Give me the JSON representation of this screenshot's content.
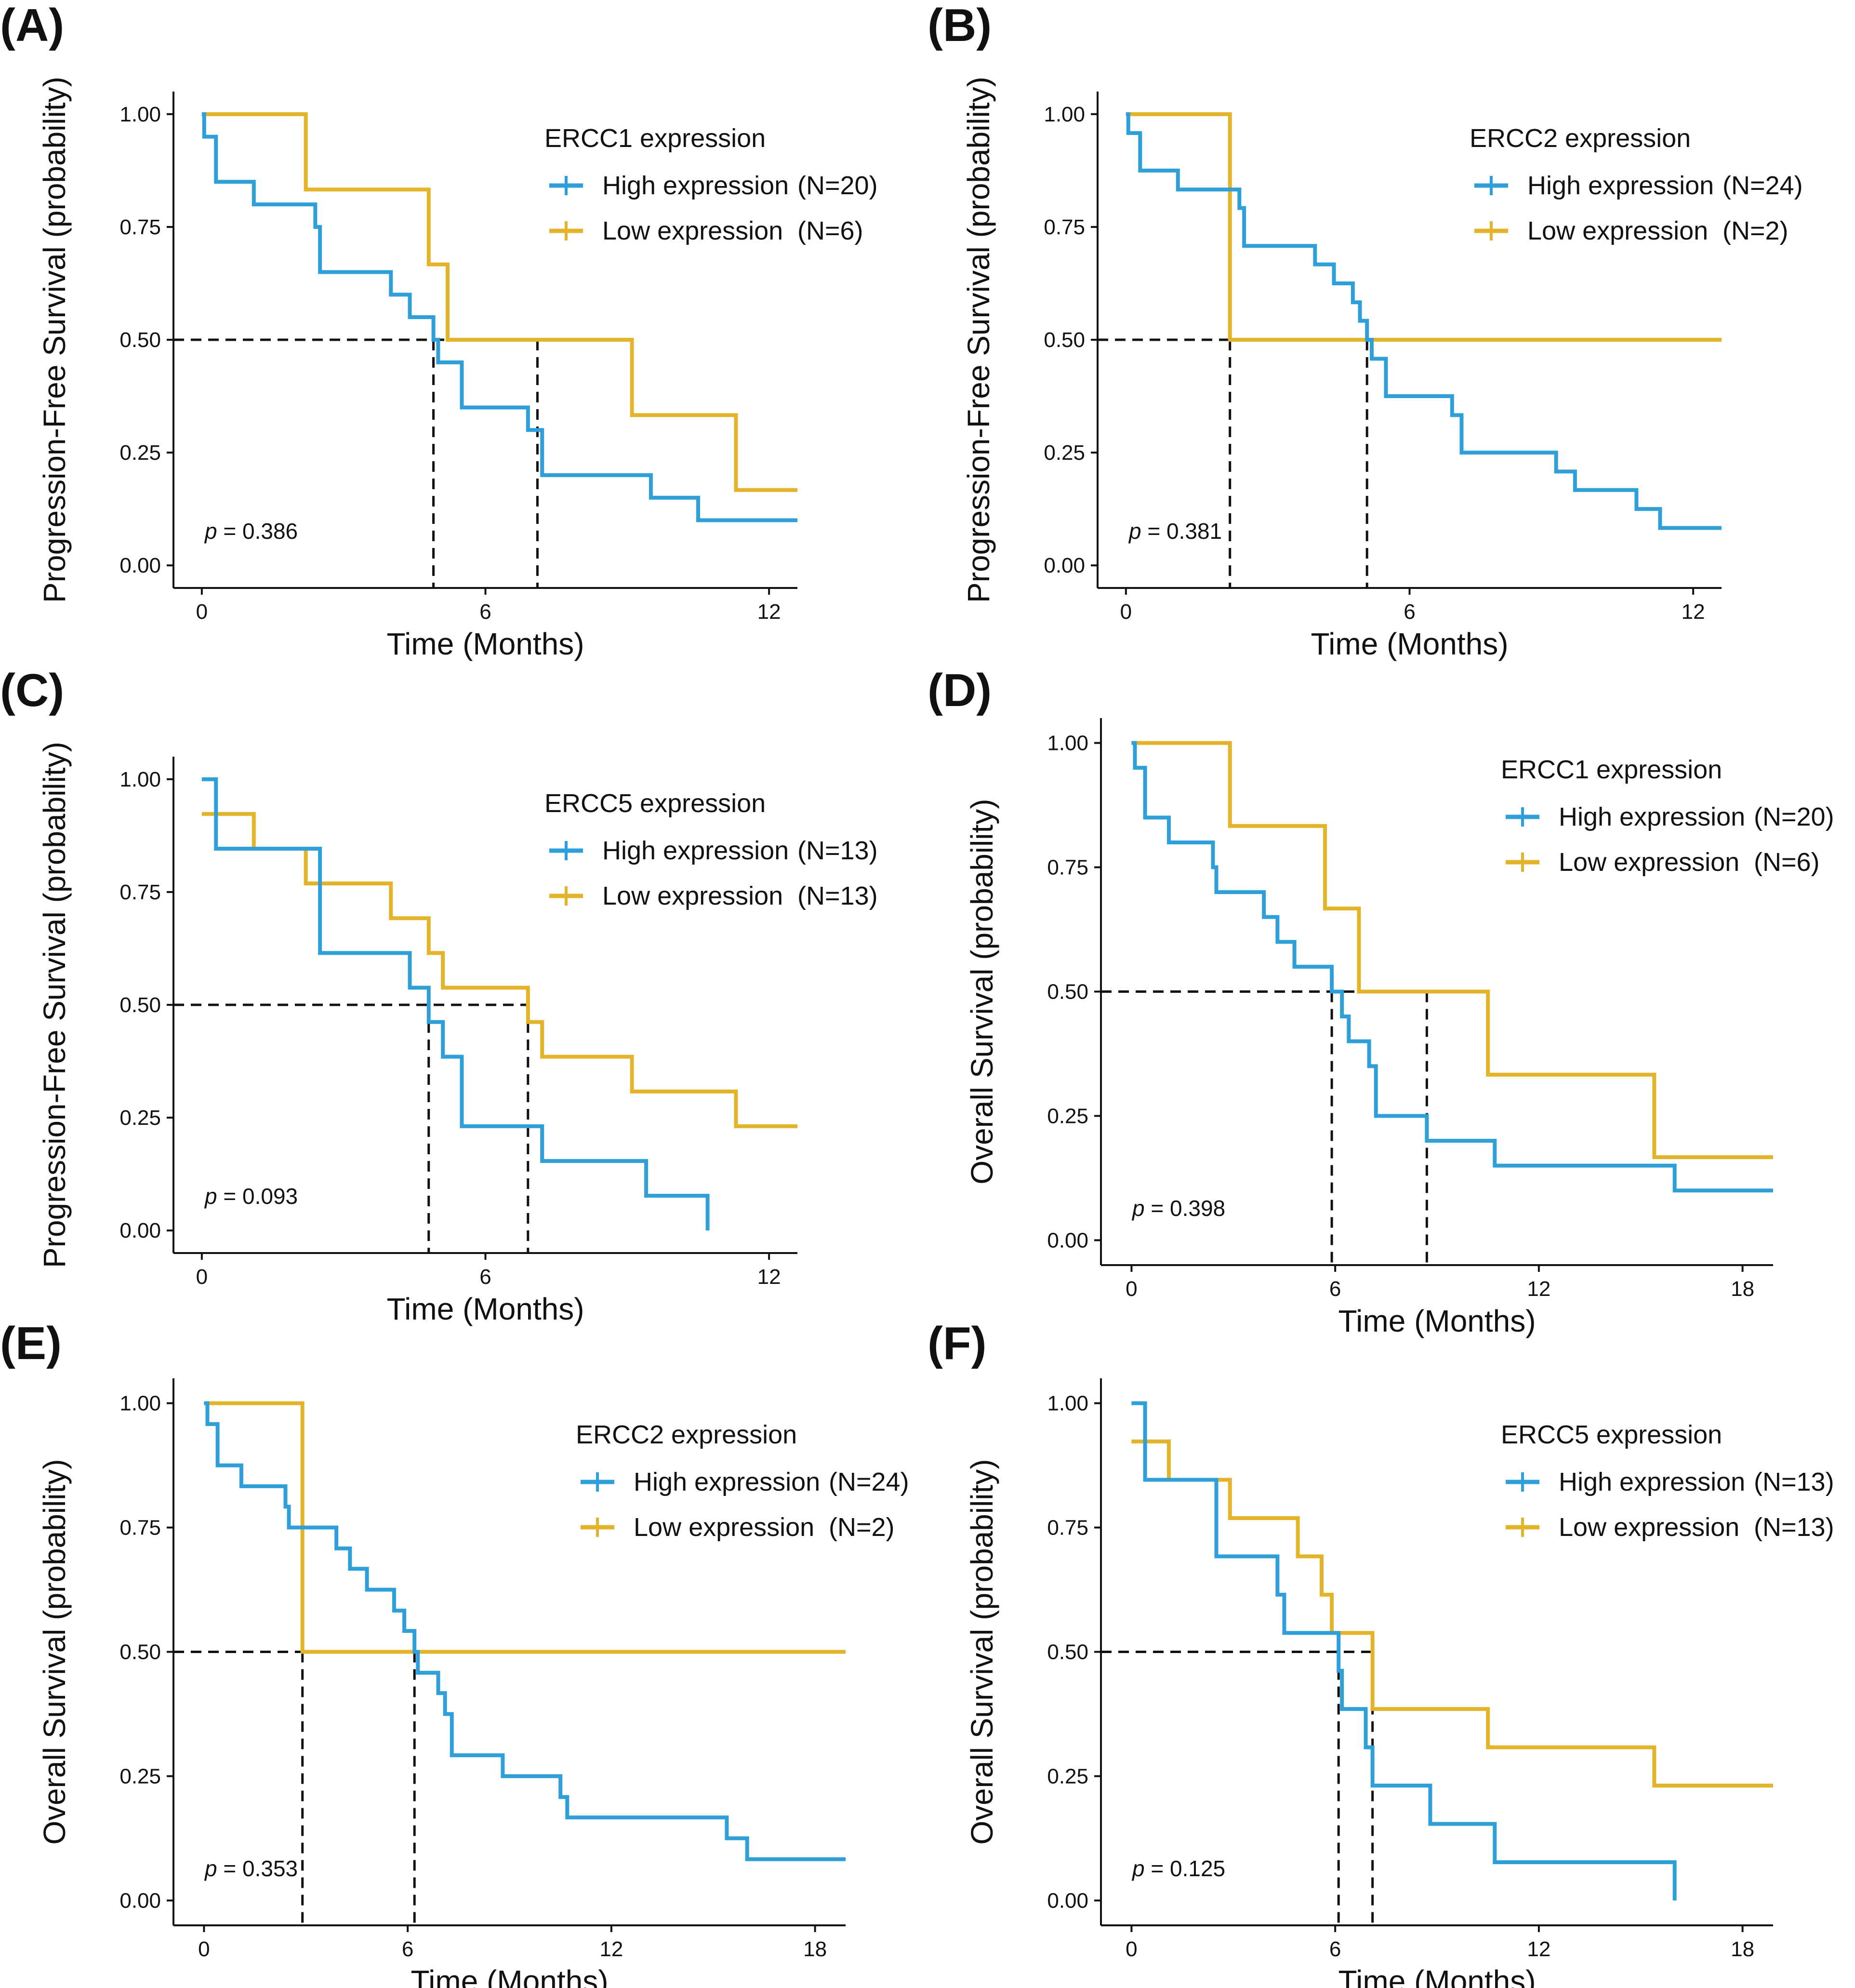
{
  "figure": {
    "colors": {
      "high": "#2E9FD8",
      "low": "#E3B32A",
      "axis": "#111111"
    },
    "chart_data": [
      {
        "panel": "(A)",
        "type": "line",
        "title": "",
        "xlabel": "Time (Months)",
        "ylabel": "Progression-Free Survival (probability)",
        "xlim": [
          -0.6,
          12.6
        ],
        "ylim": [
          -0.05,
          1.05
        ],
        "xticks": [
          0,
          6,
          12
        ],
        "xtick_labels": [
          "0",
          "6",
          "12"
        ],
        "yticks": [
          0,
          0.25,
          0.5,
          0.75,
          1.0
        ],
        "ytick_labels": [
          "0.00",
          "0.25",
          "0.50",
          "0.75",
          "1.00"
        ],
        "legend_title": "ERCC1 expression",
        "pvalue": "0.386",
        "series": [
          {
            "name": "High expression",
            "n": "(N=20)",
            "color": "#2E9FD8",
            "steps": [
              [
                0,
                1.0
              ],
              [
                0.05,
                0.95
              ],
              [
                0.3,
                0.85
              ],
              [
                1.1,
                0.8
              ],
              [
                2.4,
                0.75
              ],
              [
                2.5,
                0.65
              ],
              [
                4.0,
                0.6
              ],
              [
                4.4,
                0.55
              ],
              [
                4.9,
                0.5
              ],
              [
                5.0,
                0.45
              ],
              [
                5.5,
                0.35
              ],
              [
                6.9,
                0.3
              ],
              [
                7.2,
                0.2
              ],
              [
                9.5,
                0.15
              ],
              [
                10.5,
                0.1
              ],
              [
                12.6,
                0.1
              ]
            ],
            "median": 4.9
          },
          {
            "name": "Low expression",
            "n": "(N=6)",
            "color": "#E3B32A",
            "steps": [
              [
                0,
                1.0
              ],
              [
                2.2,
                0.833
              ],
              [
                4.8,
                0.667
              ],
              [
                5.2,
                0.5
              ],
              [
                9.1,
                0.333
              ],
              [
                11.3,
                0.167
              ],
              [
                12.6,
                0.167
              ]
            ],
            "median": 7.1
          }
        ]
      },
      {
        "panel": "(B)",
        "type": "line",
        "title": "",
        "xlabel": "Time (Months)",
        "ylabel": "Progression-Free Survival (probability)",
        "xlim": [
          -0.6,
          12.6
        ],
        "ylim": [
          -0.05,
          1.05
        ],
        "xticks": [
          0,
          6,
          12
        ],
        "xtick_labels": [
          "0",
          "6",
          "12"
        ],
        "yticks": [
          0,
          0.25,
          0.5,
          0.75,
          1.0
        ],
        "ytick_labels": [
          "0.00",
          "0.25",
          "0.50",
          "0.75",
          "1.00"
        ],
        "legend_title": "ERCC2 expression",
        "pvalue": "0.381",
        "series": [
          {
            "name": "High expression",
            "n": "(N=24)",
            "color": "#2E9FD8",
            "steps": [
              [
                0,
                1.0
              ],
              [
                0.05,
                0.958
              ],
              [
                0.3,
                0.875
              ],
              [
                1.1,
                0.833
              ],
              [
                2.4,
                0.792
              ],
              [
                2.5,
                0.708
              ],
              [
                4.0,
                0.667
              ],
              [
                4.4,
                0.625
              ],
              [
                4.8,
                0.583
              ],
              [
                4.95,
                0.542
              ],
              [
                5.1,
                0.5
              ],
              [
                5.2,
                0.458
              ],
              [
                5.5,
                0.375
              ],
              [
                6.9,
                0.333
              ],
              [
                7.1,
                0.25
              ],
              [
                9.1,
                0.208
              ],
              [
                9.5,
                0.167
              ],
              [
                10.8,
                0.125
              ],
              [
                11.3,
                0.083
              ],
              [
                12.6,
                0.083
              ]
            ],
            "median": 5.1
          },
          {
            "name": "Low expression",
            "n": "(N=2)",
            "color": "#E3B32A",
            "steps": [
              [
                0,
                1.0
              ],
              [
                2.2,
                0.5
              ],
              [
                12.6,
                0.5
              ]
            ],
            "median": 2.2
          }
        ]
      },
      {
        "panel": "(C)",
        "type": "line",
        "title": "",
        "xlabel": "Time (Months)",
        "ylabel": "Progression-Free Survival (probability)",
        "xlim": [
          -0.6,
          12.6
        ],
        "ylim": [
          -0.05,
          1.05
        ],
        "xticks": [
          0,
          6,
          12
        ],
        "xtick_labels": [
          "0",
          "6",
          "12"
        ],
        "yticks": [
          0,
          0.25,
          0.5,
          0.75,
          1.0
        ],
        "ytick_labels": [
          "0.00",
          "0.25",
          "0.50",
          "0.75",
          "1.00"
        ],
        "legend_title": "ERCC5 expression",
        "pvalue": "0.093",
        "series": [
          {
            "name": "High expression",
            "n": "(N=13)",
            "color": "#2E9FD8",
            "steps": [
              [
                0,
                1.0
              ],
              [
                0.3,
                0.846
              ],
              [
                2.5,
                0.615
              ],
              [
                4.4,
                0.538
              ],
              [
                4.8,
                0.462
              ],
              [
                5.1,
                0.385
              ],
              [
                5.5,
                0.231
              ],
              [
                7.2,
                0.154
              ],
              [
                9.4,
                0.077
              ],
              [
                10.7,
                0.0
              ]
            ],
            "median": 4.8
          },
          {
            "name": "Low expression",
            "n": "(N=13)",
            "color": "#E3B32A",
            "steps": [
              [
                0,
                0.923
              ],
              [
                1.1,
                0.846
              ],
              [
                2.2,
                0.769
              ],
              [
                4.0,
                0.692
              ],
              [
                4.8,
                0.615
              ],
              [
                5.1,
                0.538
              ],
              [
                6.9,
                0.462
              ],
              [
                7.2,
                0.385
              ],
              [
                9.1,
                0.308
              ],
              [
                11.3,
                0.231
              ],
              [
                12.6,
                0.231
              ]
            ],
            "median": 6.9
          }
        ]
      },
      {
        "panel": "(D)",
        "type": "line",
        "title": "",
        "xlabel": "Time (Months)",
        "ylabel": "Overall Survival (probability)",
        "xlim": [
          -0.9,
          18.9
        ],
        "ylim": [
          -0.05,
          1.05
        ],
        "xticks": [
          0,
          6,
          12,
          18
        ],
        "xtick_labels": [
          "0",
          "6",
          "12",
          "18"
        ],
        "yticks": [
          0,
          0.25,
          0.5,
          0.75,
          1.0
        ],
        "ytick_labels": [
          "0.00",
          "0.25",
          "0.50",
          "0.75",
          "1.00"
        ],
        "legend_title": "ERCC1 expression",
        "pvalue": "0.398",
        "series": [
          {
            "name": "High expression",
            "n": "(N=20)",
            "color": "#2E9FD8",
            "steps": [
              [
                0,
                1.0
              ],
              [
                0.1,
                0.95
              ],
              [
                0.4,
                0.85
              ],
              [
                1.1,
                0.8
              ],
              [
                2.4,
                0.75
              ],
              [
                2.5,
                0.7
              ],
              [
                3.9,
                0.65
              ],
              [
                4.3,
                0.6
              ],
              [
                4.8,
                0.55
              ],
              [
                5.9,
                0.5
              ],
              [
                6.2,
                0.45
              ],
              [
                6.4,
                0.4
              ],
              [
                7.0,
                0.35
              ],
              [
                7.2,
                0.25
              ],
              [
                8.7,
                0.2
              ],
              [
                10.7,
                0.15
              ],
              [
                16.0,
                0.1
              ],
              [
                18.9,
                0.1
              ]
            ],
            "median": 5.9
          },
          {
            "name": "Low expression",
            "n": "(N=6)",
            "color": "#E3B32A",
            "steps": [
              [
                0,
                1.0
              ],
              [
                2.9,
                0.833
              ],
              [
                5.7,
                0.667
              ],
              [
                6.7,
                0.5
              ],
              [
                10.5,
                0.333
              ],
              [
                15.4,
                0.167
              ],
              [
                18.9,
                0.167
              ]
            ],
            "median": 8.7
          }
        ]
      },
      {
        "panel": "(E)",
        "type": "line",
        "title": "",
        "xlabel": "Time (Months)",
        "ylabel": "Overall Survival (probability)",
        "xlim": [
          -0.9,
          18.9
        ],
        "ylim": [
          -0.05,
          1.05
        ],
        "xticks": [
          0,
          6,
          12,
          18
        ],
        "xtick_labels": [
          "0",
          "6",
          "12",
          "18"
        ],
        "yticks": [
          0,
          0.25,
          0.5,
          0.75,
          1.0
        ],
        "ytick_labels": [
          "0.00",
          "0.25",
          "0.50",
          "0.75",
          "1.00"
        ],
        "legend_title": "ERCC2 expression",
        "pvalue": "0.353",
        "series": [
          {
            "name": "High expression",
            "n": "(N=24)",
            "color": "#2E9FD8",
            "steps": [
              [
                0,
                1.0
              ],
              [
                0.1,
                0.958
              ],
              [
                0.4,
                0.875
              ],
              [
                1.1,
                0.833
              ],
              [
                2.4,
                0.792
              ],
              [
                2.5,
                0.75
              ],
              [
                3.9,
                0.708
              ],
              [
                4.3,
                0.667
              ],
              [
                4.8,
                0.625
              ],
              [
                5.6,
                0.583
              ],
              [
                5.9,
                0.542
              ],
              [
                6.2,
                0.5
              ],
              [
                6.3,
                0.458
              ],
              [
                6.9,
                0.417
              ],
              [
                7.1,
                0.375
              ],
              [
                7.3,
                0.292
              ],
              [
                8.8,
                0.25
              ],
              [
                10.5,
                0.208
              ],
              [
                10.7,
                0.167
              ],
              [
                15.4,
                0.125
              ],
              [
                16.0,
                0.083
              ],
              [
                18.9,
                0.083
              ]
            ],
            "median": 6.2
          },
          {
            "name": "Low expression",
            "n": "(N=2)",
            "color": "#E3B32A",
            "steps": [
              [
                0,
                1.0
              ],
              [
                2.9,
                0.5
              ],
              [
                18.9,
                0.5
              ]
            ],
            "median": 2.9
          }
        ]
      },
      {
        "panel": "(F)",
        "type": "line",
        "title": "",
        "xlabel": "Time (Months)",
        "ylabel": "Overall Survival (probability)",
        "xlim": [
          -0.9,
          18.9
        ],
        "ylim": [
          -0.05,
          1.05
        ],
        "xticks": [
          0,
          6,
          12,
          18
        ],
        "xtick_labels": [
          "0",
          "6",
          "12",
          "18"
        ],
        "yticks": [
          0,
          0.25,
          0.5,
          0.75,
          1.0
        ],
        "ytick_labels": [
          "0.00",
          "0.25",
          "0.50",
          "0.75",
          "1.00"
        ],
        "legend_title": "ERCC5 expression",
        "pvalue": "0.125",
        "series": [
          {
            "name": "High expression",
            "n": "(N=13)",
            "color": "#2E9FD8",
            "steps": [
              [
                0,
                1.0
              ],
              [
                0.4,
                0.846
              ],
              [
                2.5,
                0.692
              ],
              [
                4.3,
                0.615
              ],
              [
                4.5,
                0.538
              ],
              [
                6.1,
                0.462
              ],
              [
                6.2,
                0.385
              ],
              [
                6.9,
                0.308
              ],
              [
                7.1,
                0.231
              ],
              [
                8.8,
                0.154
              ],
              [
                10.7,
                0.077
              ],
              [
                16.0,
                0.0
              ]
            ],
            "median": 6.1
          },
          {
            "name": "Low expression",
            "n": "(N=13)",
            "color": "#E3B32A",
            "steps": [
              [
                0,
                0.923
              ],
              [
                1.1,
                0.846
              ],
              [
                2.9,
                0.769
              ],
              [
                4.9,
                0.692
              ],
              [
                5.6,
                0.615
              ],
              [
                5.9,
                0.538
              ],
              [
                7.1,
                0.385
              ],
              [
                10.5,
                0.308
              ],
              [
                15.4,
                0.231
              ],
              [
                18.9,
                0.231
              ]
            ],
            "median": 7.1
          }
        ]
      }
    ]
  }
}
